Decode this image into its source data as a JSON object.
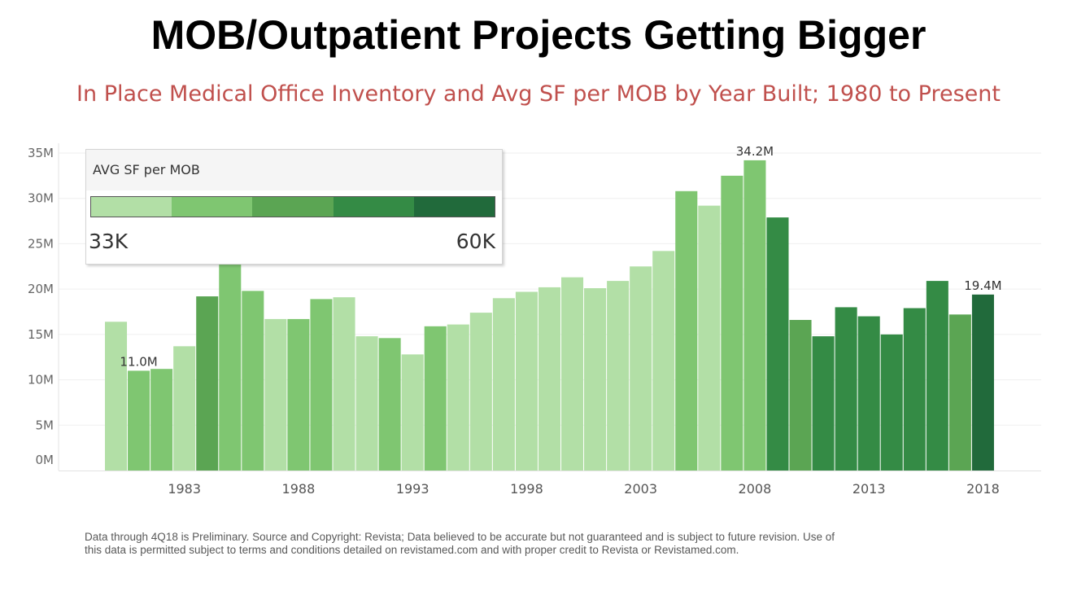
{
  "title": "MOB/Outpatient Projects Getting Bigger",
  "subtitle": "In Place Medical Office Inventory and Avg SF per MOB by Year Built; 1980 to Present",
  "legend": {
    "title": "AVG SF per MOB",
    "min_label": "33K",
    "max_label": "60K",
    "colors": [
      "#b2dfa6",
      "#7fc671",
      "#5ba553",
      "#348b45",
      "#216a3b"
    ]
  },
  "chart_data": {
    "type": "bar",
    "title": "",
    "xlabel": "",
    "ylabel": "",
    "ylim": [
      0,
      35
    ],
    "y_unit": "M",
    "yticks": [
      "0M",
      "5M",
      "10M",
      "15M",
      "20M",
      "25M",
      "30M",
      "35M"
    ],
    "x_tick_labels": [
      "1983",
      "1988",
      "1993",
      "1998",
      "2003",
      "2008",
      "2013",
      "2018"
    ],
    "grid": true,
    "legend_placement": "top-left",
    "categories": [
      1980,
      1981,
      1982,
      1983,
      1984,
      1985,
      1986,
      1987,
      1988,
      1989,
      1990,
      1991,
      1992,
      1993,
      1994,
      1995,
      1996,
      1997,
      1998,
      1999,
      2000,
      2001,
      2002,
      2003,
      2004,
      2005,
      2006,
      2007,
      2008,
      2009,
      2010,
      2011,
      2012,
      2013,
      2014,
      2015,
      2016,
      2017,
      2018
    ],
    "values": [
      16.4,
      11.0,
      11.2,
      13.7,
      19.2,
      22.7,
      19.8,
      16.7,
      16.7,
      18.9,
      19.1,
      14.8,
      14.6,
      12.8,
      15.9,
      16.1,
      17.4,
      19.0,
      19.7,
      20.2,
      21.3,
      20.1,
      20.9,
      22.5,
      24.2,
      30.8,
      29.2,
      32.5,
      34.2,
      27.9,
      16.6,
      14.8,
      18.0,
      17.0,
      15.0,
      17.9,
      20.9,
      17.2,
      19.4
    ],
    "avg_sf_color_level": [
      1,
      2,
      2,
      1,
      3,
      2,
      2,
      1,
      2,
      2,
      1,
      1,
      2,
      1,
      2,
      1,
      1,
      1,
      1,
      1,
      1,
      1,
      1,
      1,
      1,
      2,
      1,
      2,
      2,
      4,
      3,
      4,
      4,
      4,
      4,
      4,
      4,
      3,
      5
    ],
    "data_labels": [
      {
        "category": 1981,
        "text": "11.0M"
      },
      {
        "category": 2008,
        "text": "34.2M"
      },
      {
        "category": 2018,
        "text": "19.4M"
      }
    ]
  },
  "footnote": {
    "line1": "Data through 4Q18 is Preliminary.  Source and Copyright: Revista; Data believed to be accurate but not guaranteed and is subject to future revision. Use of",
    "line2": "this data is permitted subject to terms and conditions detailed on revistamed.com and with proper credit to Revista or Revistamed.com."
  }
}
